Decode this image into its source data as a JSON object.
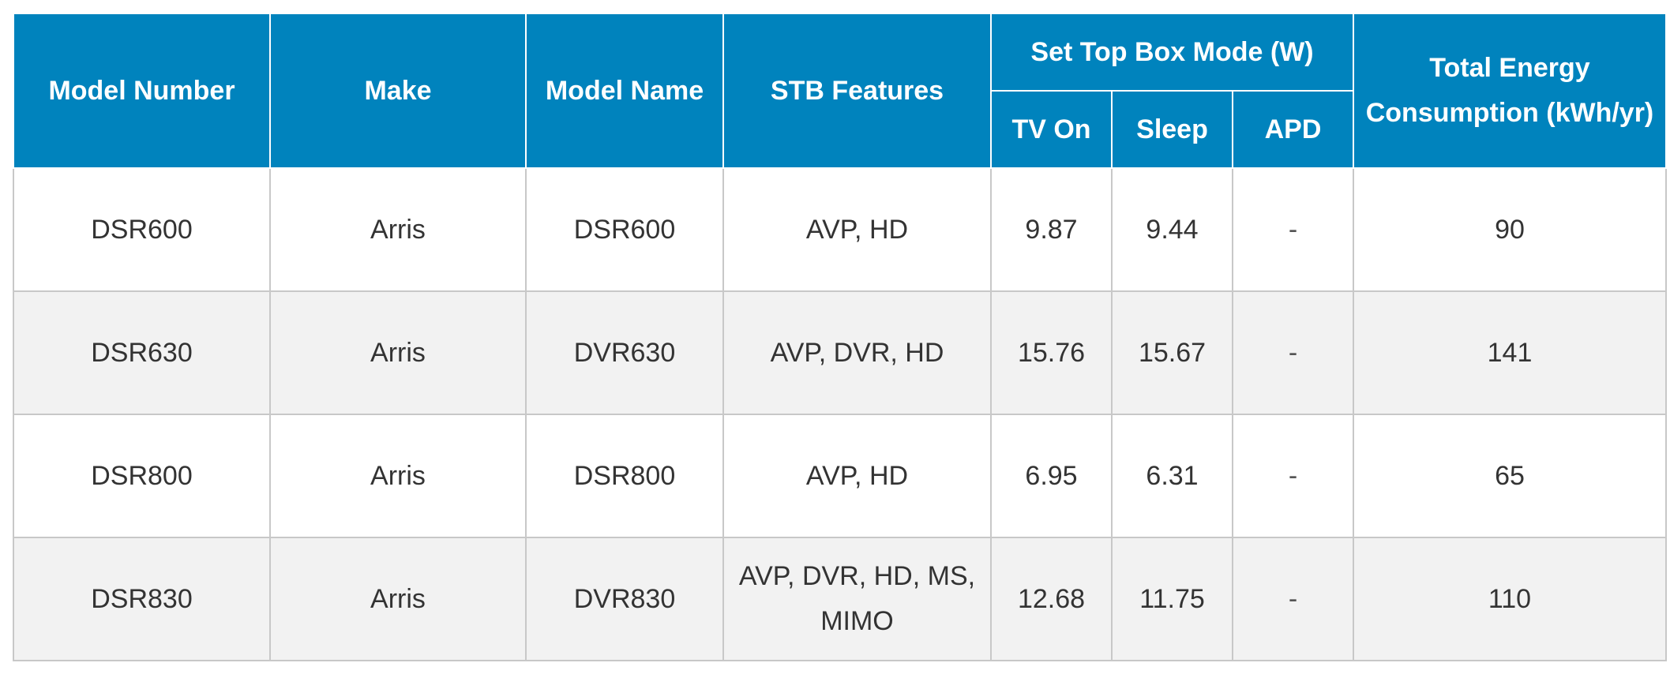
{
  "table": {
    "headers": {
      "model_number": "Model Number",
      "make": "Make",
      "model_name": "Model Name",
      "stb_features": "STB Features",
      "set_top_box_mode": "Set Top Box Mode (W)",
      "tv_on": "TV On",
      "sleep": "Sleep",
      "apd": "APD",
      "total_energy": "Total Energy Consumption (kWh/yr)"
    },
    "rows": [
      {
        "model_number": "DSR600",
        "make": "Arris",
        "model_name": "DSR600",
        "features": "AVP, HD",
        "tv_on": "9.87",
        "sleep": "9.44",
        "apd": "-",
        "total": "90"
      },
      {
        "model_number": "DSR630",
        "make": "Arris",
        "model_name": "DVR630",
        "features": "AVP, DVR, HD",
        "tv_on": "15.76",
        "sleep": "15.67",
        "apd": "-",
        "total": "141"
      },
      {
        "model_number": "DSR800",
        "make": "Arris",
        "model_name": "DSR800",
        "features": "AVP, HD",
        "tv_on": "6.95",
        "sleep": "6.31",
        "apd": "-",
        "total": "65"
      },
      {
        "model_number": "DSR830",
        "make": "Arris",
        "model_name": "DVR830",
        "features": "AVP, DVR, HD, MS, MIMO",
        "tv_on": "12.68",
        "sleep": "11.75",
        "apd": "-",
        "total": "110"
      }
    ]
  }
}
